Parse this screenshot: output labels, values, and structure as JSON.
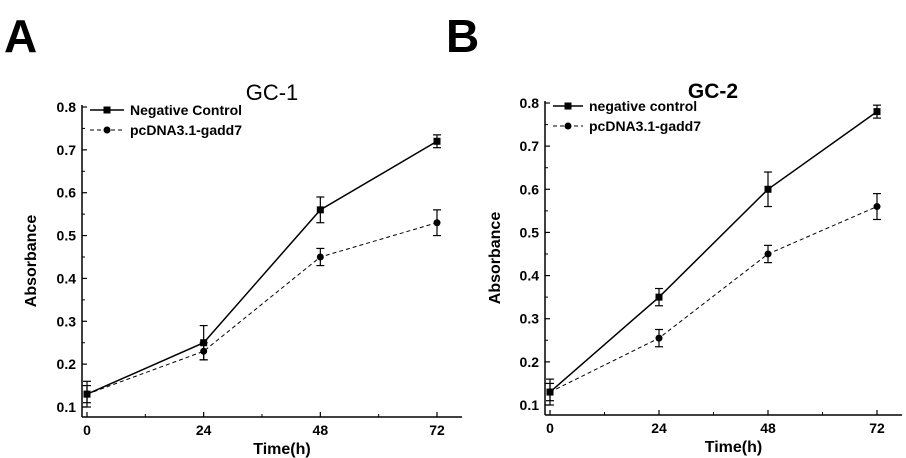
{
  "panels": [
    {
      "letter": "A",
      "chart_data": {
        "type": "line",
        "title": "GC-1",
        "xlabel": "Time(h)",
        "ylabel": "Absorbance",
        "x": [
          0,
          24,
          48,
          72
        ],
        "xticks": [
          "0",
          "24",
          "48",
          "72"
        ],
        "yticks": [
          "0.1",
          "0.2",
          "0.3",
          "0.4",
          "0.5",
          "0.6",
          "0.7",
          "0.8"
        ],
        "ylim": [
          0.1,
          0.8
        ],
        "legend_position": "top-left",
        "grid": false,
        "series": [
          {
            "name": "Negative Control",
            "style": "solid",
            "marker": "square",
            "values": [
              0.13,
              0.25,
              0.56,
              0.72
            ],
            "errors": [
              0.03,
              0.04,
              0.03,
              0.015
            ],
            "color": "#000000"
          },
          {
            "name": "pcDNA3.1-gadd7",
            "style": "dashed",
            "marker": "circle",
            "values": [
              0.13,
              0.23,
              0.45,
              0.53
            ],
            "errors": [
              0.02,
              0.02,
              0.02,
              0.03
            ],
            "color": "#000000"
          }
        ]
      }
    },
    {
      "letter": "B",
      "chart_data": {
        "type": "line",
        "title": "GC-2",
        "xlabel": "Time(h)",
        "ylabel": "Absorbance",
        "x": [
          0,
          24,
          48,
          72
        ],
        "xticks": [
          "0",
          "24",
          "48",
          "72"
        ],
        "yticks": [
          "0.1",
          "0.2",
          "0.3",
          "0.4",
          "0.5",
          "0.6",
          "0.7",
          "0.8"
        ],
        "ylim": [
          0.1,
          0.8
        ],
        "legend_position": "top-left",
        "grid": false,
        "series": [
          {
            "name": "negative control",
            "style": "solid",
            "marker": "square",
            "values": [
              0.13,
              0.35,
              0.6,
              0.78
            ],
            "errors": [
              0.03,
              0.02,
              0.04,
              0.015
            ],
            "color": "#000000"
          },
          {
            "name": "pcDNA3.1-gadd7",
            "style": "dashed",
            "marker": "circle",
            "values": [
              0.13,
              0.255,
              0.45,
              0.56
            ],
            "errors": [
              0.02,
              0.02,
              0.02,
              0.03
            ],
            "color": "#000000"
          }
        ]
      }
    }
  ]
}
